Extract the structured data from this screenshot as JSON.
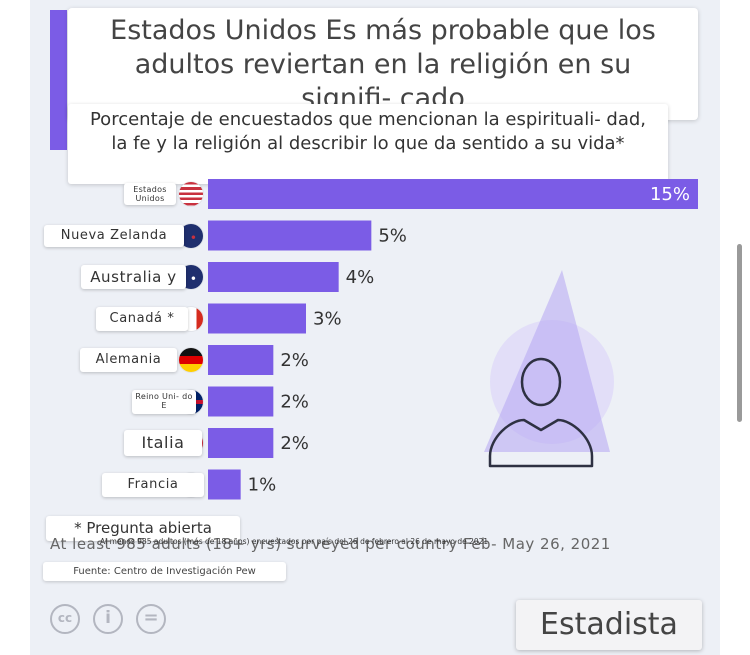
{
  "title": "Estados Unidos Es más probable que los adultos reviertan en la religión en su signifi- cado",
  "subtitle": "Porcentaje de encuestados que mencionan la espirituali- dad, la fe y la religión al describir lo que da sentido a su vida*",
  "chart_data": {
    "type": "bar",
    "orientation": "horizontal",
    "title": "Estados Unidos Es más probable que los adultos reviertan en la religión en su signifi- cado",
    "subtitle": "Porcentaje de encuestados que mencionan la espirituali- dad, la fe y la religión al describir lo que da sentido a su vida*",
    "categories": [
      "Estados Unidos",
      "Nueva Zelanda",
      "Australia y",
      "Canadá *",
      "Alemania",
      "Reino Uni- do E",
      "Italia",
      "Francia"
    ],
    "values": [
      15,
      5,
      4,
      3,
      2,
      2,
      2,
      1
    ],
    "value_labels": [
      "15%",
      "5%",
      "4%",
      "3%",
      "2%",
      "2%",
      "2%",
      "1%"
    ],
    "unit": "%",
    "xlim": [
      0,
      15
    ],
    "grid": false,
    "legend": "none",
    "bar_color": "#7b5ce6"
  },
  "footnote": "* Pregunta abierta",
  "details": "Al menos 985 adultos (más de 18 años) encuestados por país del 26 de febrero al 26 de mayo de 2021",
  "details_ghost": "At least 985 adults (18+ yrs) surveyed per country Feb- May 26, 2021",
  "source": "Fuente: Centro de Investigación Pew",
  "brand": "Estadista",
  "license_icons": [
    "creative-commons-icon",
    "attribution-icon",
    "no-derivatives-icon"
  ],
  "license_glyphs": [
    "cc",
    "i",
    "="
  ],
  "colors": {
    "accent": "#7b5ce6",
    "panel": "#edf0f6",
    "value_text": "#333333",
    "value_text_inside": "#ffffff"
  }
}
